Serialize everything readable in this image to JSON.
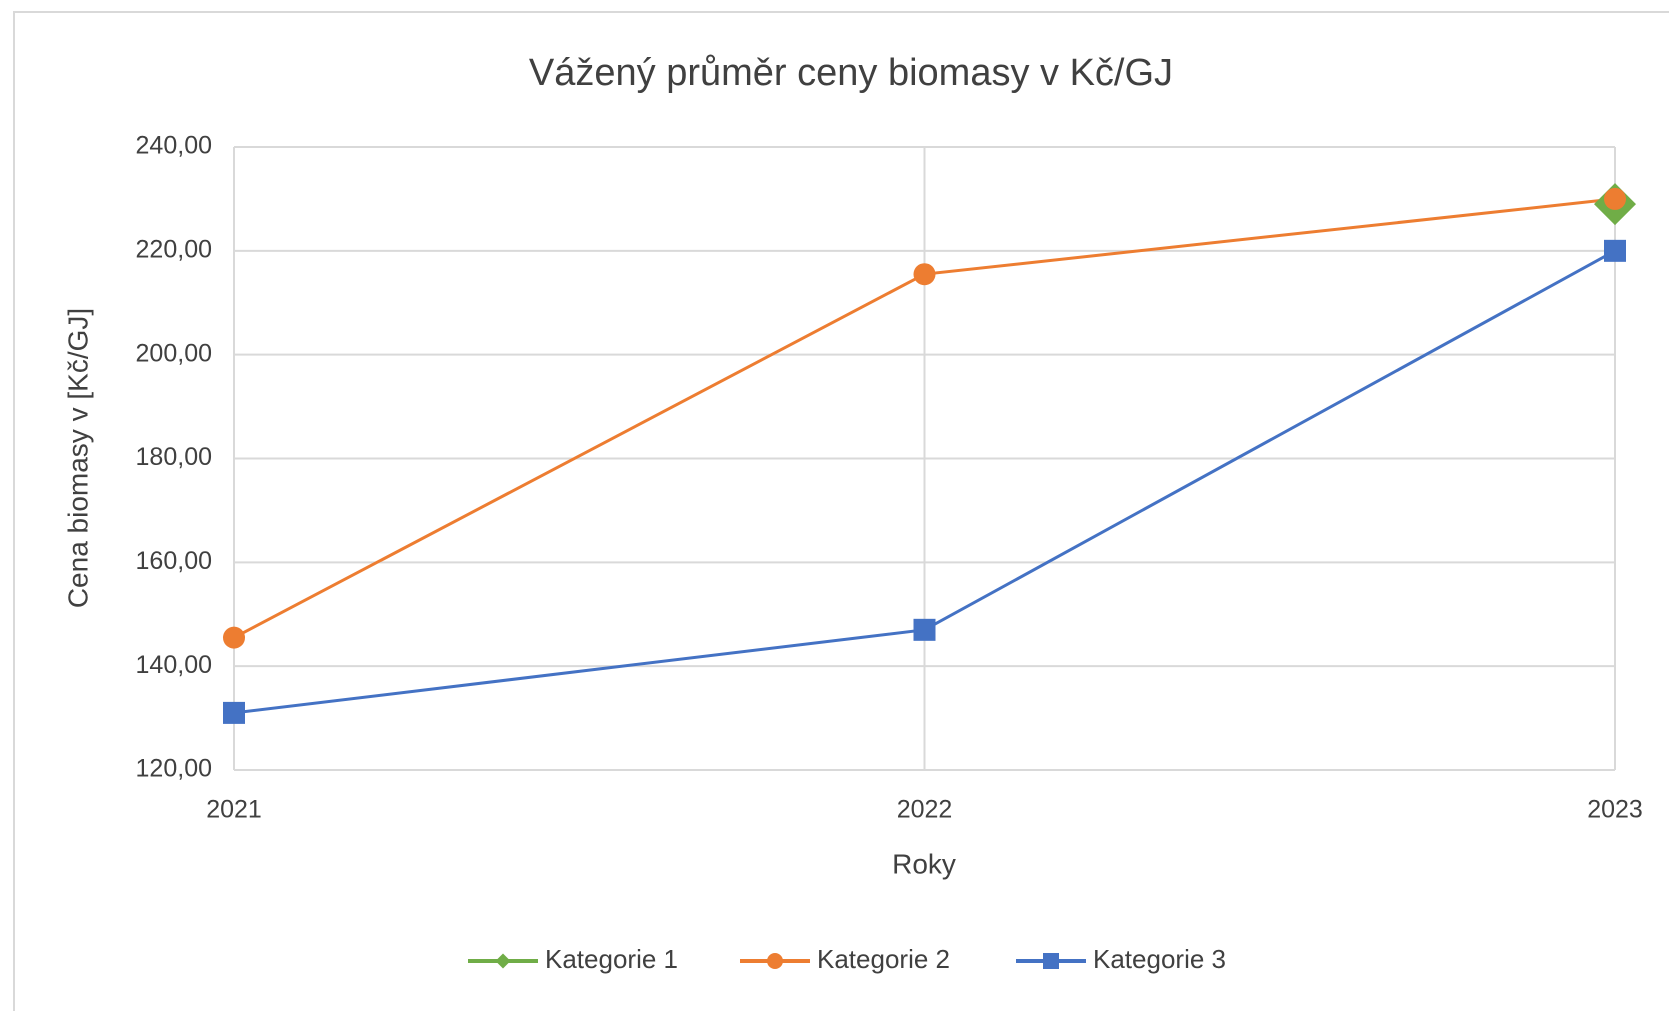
{
  "chart_data": {
    "type": "line",
    "title": "Vážený průměr ceny biomasy v Kč/GJ",
    "x_label": "Roky",
    "y_label": "Cena biomasy v [Kč/GJ]",
    "x": [
      2021,
      2022,
      2023
    ],
    "series": [
      {
        "name": "Kategorie 1",
        "color": "#70ad47",
        "marker": "diamond",
        "values": [
          null,
          null,
          229
        ]
      },
      {
        "name": "Kategorie 2",
        "color": "#ed7d31",
        "marker": "circle",
        "values": [
          145.5,
          215.5,
          230
        ]
      },
      {
        "name": "Kategorie 3",
        "color": "#4472c4",
        "marker": "square",
        "values": [
          131,
          147,
          220
        ]
      }
    ],
    "xlim": [
      2021,
      2023
    ],
    "xticks": [
      2021,
      2022,
      2023
    ],
    "ylim": [
      120,
      240
    ],
    "yticks": [
      {
        "value": 120,
        "label": "120,00"
      },
      {
        "value": 140,
        "label": "140,00"
      },
      {
        "value": 160,
        "label": "160,00"
      },
      {
        "value": 180,
        "label": "180,00"
      },
      {
        "value": 200,
        "label": "200,00"
      },
      {
        "value": 220,
        "label": "220,00"
      },
      {
        "value": 240,
        "label": "240,00"
      }
    ],
    "grid": true,
    "legend": "bottom"
  }
}
